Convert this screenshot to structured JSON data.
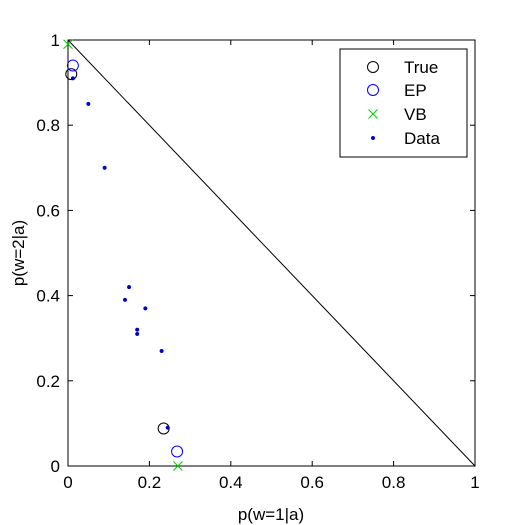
{
  "chart_data": {
    "type": "scatter",
    "xlabel": "p(w=1|a)",
    "ylabel": "p(w=2|a)",
    "xlim": [
      0,
      1
    ],
    "ylim": [
      0,
      1
    ],
    "xticks": [
      0,
      0.2,
      0.4,
      0.6,
      0.8,
      1
    ],
    "yticks": [
      0,
      0.2,
      0.4,
      0.6,
      0.8,
      1
    ],
    "xtick_labels": [
      "0",
      "0.2",
      "0.4",
      "0.6",
      "0.8",
      "1"
    ],
    "ytick_labels": [
      "0",
      "0.2",
      "0.4",
      "0.6",
      "0.8",
      "1"
    ],
    "grid": false,
    "legend_position": "top-right",
    "reference_line": {
      "x": [
        0,
        1
      ],
      "y": [
        1,
        0
      ],
      "color": "#000000"
    },
    "series": [
      {
        "name": "True",
        "marker": "circle",
        "color": "#000000",
        "points": [
          [
            0.008,
            0.92
          ],
          [
            0.235,
            0.088
          ]
        ]
      },
      {
        "name": "EP",
        "marker": "circle",
        "color": "#0000ff",
        "points": [
          [
            0.012,
            0.94
          ],
          [
            0.268,
            0.034
          ]
        ]
      },
      {
        "name": "VB",
        "marker": "cross",
        "color": "#00cc00",
        "points": [
          [
            0.0,
            0.99
          ],
          [
            0.27,
            0.0
          ]
        ]
      },
      {
        "name": "Data",
        "marker": "dot",
        "color": "#0000cc",
        "points": [
          [
            0.012,
            0.91
          ],
          [
            0.05,
            0.85
          ],
          [
            0.09,
            0.7
          ],
          [
            0.15,
            0.42
          ],
          [
            0.14,
            0.39
          ],
          [
            0.19,
            0.37
          ],
          [
            0.17,
            0.32
          ],
          [
            0.17,
            0.31
          ],
          [
            0.23,
            0.27
          ],
          [
            0.245,
            0.09
          ]
        ]
      }
    ]
  }
}
